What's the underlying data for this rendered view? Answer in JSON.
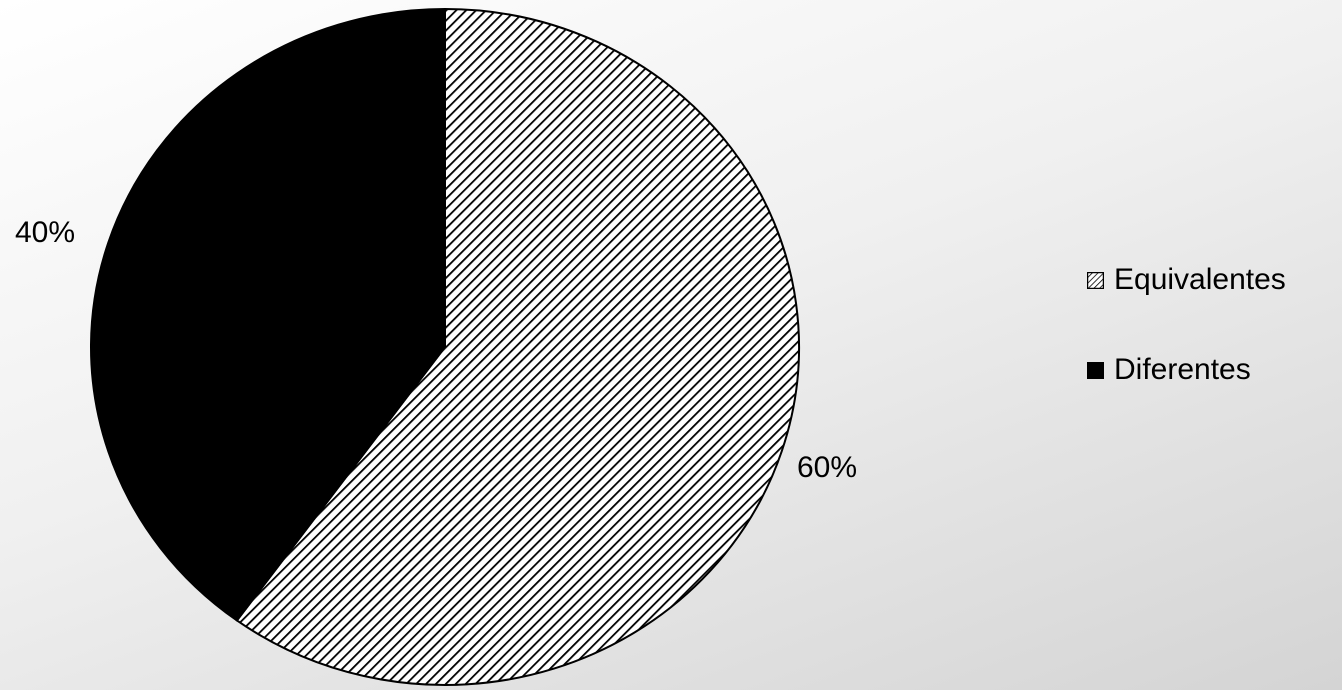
{
  "chart_data": {
    "type": "pie",
    "title": "",
    "start_angle_deg": 0,
    "direction": "clockwise",
    "slices": [
      {
        "label": "Equivalentes",
        "value": 60,
        "display": "60%",
        "fill": "hatch-diagonal",
        "color": "#000000"
      },
      {
        "label": "Diferentes",
        "value": 40,
        "display": "40%",
        "fill": "solid",
        "color": "#000000"
      }
    ],
    "legend_position": "right"
  }
}
